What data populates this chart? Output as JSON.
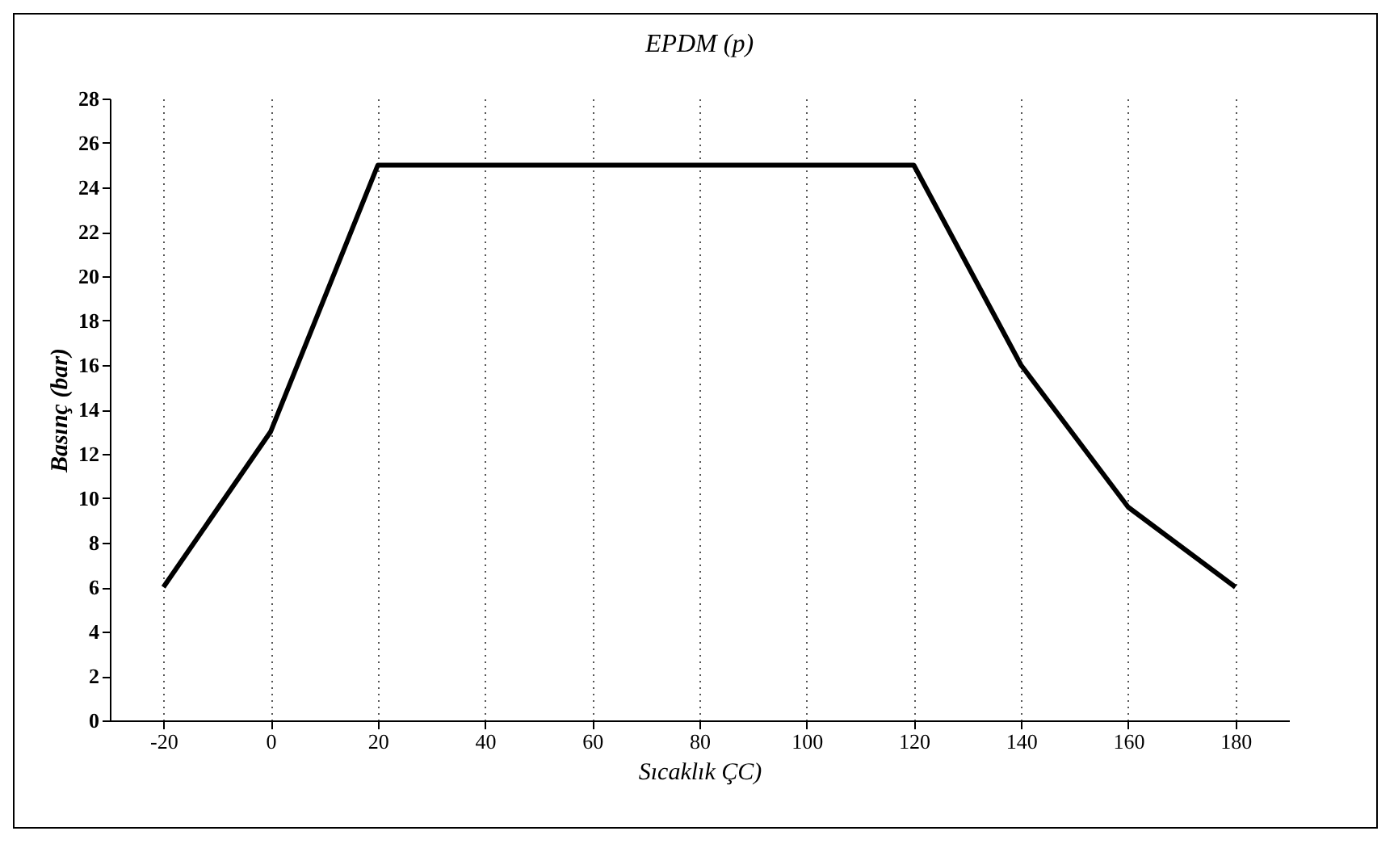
{
  "chart_data": {
    "type": "line",
    "title": "EPDM (p)",
    "xlabel": "Sıcaklık ÇC)",
    "ylabel": "Basınç (bar)",
    "categories": [
      "-20",
      "0",
      "20",
      "40",
      "60",
      "80",
      "100",
      "120",
      "140",
      "160",
      "180"
    ],
    "series": [
      {
        "color": "#000000",
        "values": [
          6,
          13,
          25,
          25,
          25,
          25,
          25,
          25,
          16,
          9.6,
          6
        ]
      }
    ],
    "ylim": [
      0,
      28
    ],
    "yticks": [
      0,
      2,
      4,
      6,
      8,
      10,
      12,
      14,
      16,
      18,
      20,
      22,
      24,
      26,
      28
    ],
    "grid": "x",
    "marker": "none",
    "line_style": "solid"
  }
}
